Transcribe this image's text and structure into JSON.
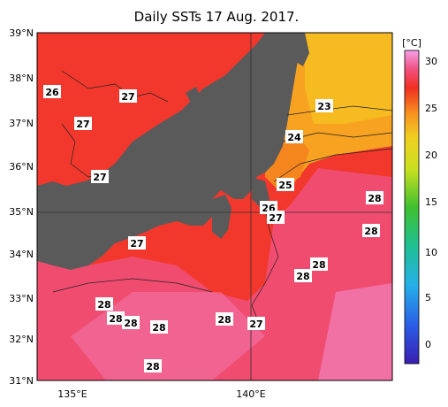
{
  "title": "Daily SSTs 17 Aug. 2017.",
  "map": {
    "lat_labels": [
      "39°N",
      "38°N",
      "37°N",
      "36°N",
      "35°N",
      "34°N",
      "33°N",
      "32°N",
      "31°N"
    ],
    "lon_labels": [
      "135°E",
      "140°E"
    ],
    "labels": [
      "26",
      "27",
      "27",
      "27",
      "27",
      "23",
      "24",
      "25",
      "26",
      "27",
      "28",
      "28",
      "28",
      "28",
      "28",
      "28",
      "28",
      "28",
      "28",
      "28",
      "28",
      "27"
    ]
  },
  "colorbar": {
    "unit": "[°C]",
    "ticks": [
      "30",
      "25",
      "20",
      "15",
      "10",
      "5",
      "0"
    ]
  },
  "colors": {
    "land": "#5a5a5a",
    "sst_26": "#f23a22",
    "sst_27": "#f53030",
    "sst_28_plus": "#f0507a",
    "sst_23_25": "#f7a020"
  }
}
